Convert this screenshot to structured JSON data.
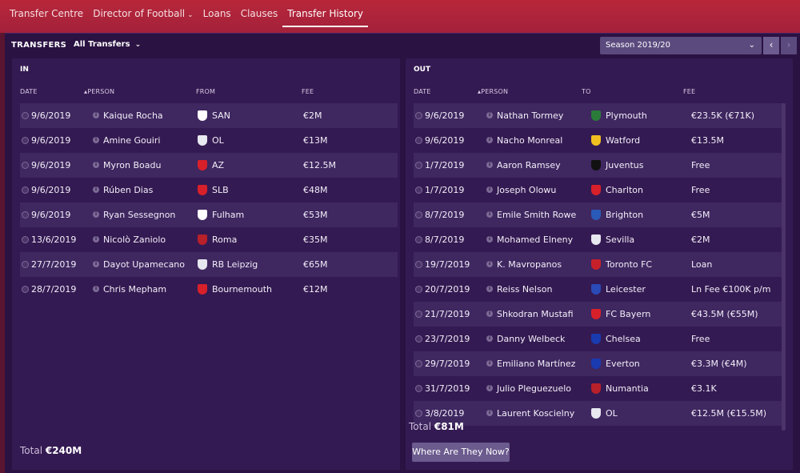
{
  "tabs": [
    {
      "label": "Transfer Centre"
    },
    {
      "label": "Director of Football",
      "dropdown": true
    },
    {
      "label": "Loans"
    },
    {
      "label": "Clauses"
    },
    {
      "label": "Transfer History",
      "active": true
    }
  ],
  "header": {
    "title": "TRANSFERS",
    "filter": "All Transfers",
    "season": "Season 2019/20"
  },
  "in": {
    "title": "IN",
    "columns": {
      "date": "DATE",
      "person": "PERSON",
      "club": "FROM",
      "fee": "FEE"
    },
    "rows": [
      {
        "date": "9/6/2019",
        "person": "Kaique Rocha",
        "club": "SAN",
        "fee": "€2M",
        "crest": "#ffffff"
      },
      {
        "date": "9/6/2019",
        "person": "Amine Gouiri",
        "club": "OL",
        "fee": "€13M",
        "crest": "#e8e8f0"
      },
      {
        "date": "9/6/2019",
        "person": "Myron Boadu",
        "club": "AZ",
        "fee": "€12.5M",
        "crest": "#d8202a"
      },
      {
        "date": "9/6/2019",
        "person": "Rúben Dias",
        "club": "SLB",
        "fee": "€48M",
        "crest": "#d8202a"
      },
      {
        "date": "9/6/2019",
        "person": "Ryan Sessegnon",
        "club": "Fulham",
        "fee": "€53M",
        "crest": "#ffffff"
      },
      {
        "date": "13/6/2019",
        "person": "Nicolò Zaniolo",
        "club": "Roma",
        "fee": "€35M",
        "crest": "#b8202a"
      },
      {
        "date": "27/7/2019",
        "person": "Dayot Upamecano",
        "club": "RB Leipzig",
        "fee": "€65M",
        "crest": "#e8e8f0"
      },
      {
        "date": "28/7/2019",
        "person": "Chris Mepham",
        "club": "Bournemouth",
        "fee": "€12M",
        "crest": "#d8202a"
      }
    ],
    "total_label": "Total",
    "total_value": "€240M"
  },
  "out": {
    "title": "OUT",
    "columns": {
      "date": "DATE",
      "person": "PERSON",
      "club": "TO",
      "fee": "FEE"
    },
    "rows": [
      {
        "date": "9/6/2019",
        "person": "Nathan Tormey",
        "club": "Plymouth",
        "fee": "€23.5K (€71K)",
        "crest": "#2a7a3a"
      },
      {
        "date": "9/6/2019",
        "person": "Nacho Monreal",
        "club": "Watford",
        "fee": "€13.5M",
        "crest": "#f0c020"
      },
      {
        "date": "1/7/2019",
        "person": "Aaron Ramsey",
        "club": "Juventus",
        "fee": "Free",
        "crest": "#111111"
      },
      {
        "date": "1/7/2019",
        "person": "Joseph Olowu",
        "club": "Charlton",
        "fee": "Free",
        "crest": "#d8202a"
      },
      {
        "date": "8/7/2019",
        "person": "Emile Smith Rowe",
        "club": "Brighton",
        "fee": "€5M",
        "crest": "#2a5ab8"
      },
      {
        "date": "8/7/2019",
        "person": "Mohamed Elneny",
        "club": "Sevilla",
        "fee": "€2M",
        "crest": "#e8e8f0"
      },
      {
        "date": "19/7/2019",
        "person": "K. Mavropanos",
        "club": "Toronto FC",
        "fee": "Loan",
        "crest": "#c8202a"
      },
      {
        "date": "20/7/2019",
        "person": "Reiss Nelson",
        "club": "Leicester",
        "fee": "Ln Fee €100K p/m",
        "crest": "#2a4ab8"
      },
      {
        "date": "21/7/2019",
        "person": "Shkodran Mustafi",
        "club": "FC Bayern",
        "fee": "€43.5M (€55M)",
        "crest": "#d8202a"
      },
      {
        "date": "23/7/2019",
        "person": "Danny Welbeck",
        "club": "Chelsea",
        "fee": "Free",
        "crest": "#1a3ab0"
      },
      {
        "date": "29/7/2019",
        "person": "Emiliano Martínez",
        "club": "Everton",
        "fee": "€3.3M (€4M)",
        "crest": "#1a3ab0"
      },
      {
        "date": "31/7/2019",
        "person": "Julio Pleguezuelo",
        "club": "Numantia",
        "fee": "€3.1K",
        "crest": "#b8202a"
      },
      {
        "date": "3/8/2019",
        "person": "Laurent Koscielny",
        "club": "OL",
        "fee": "€12.5M (€15.5M)",
        "crest": "#e8e8f0"
      }
    ],
    "total_label": "Total",
    "total_value": "€81M",
    "button": "Where Are They Now?"
  }
}
